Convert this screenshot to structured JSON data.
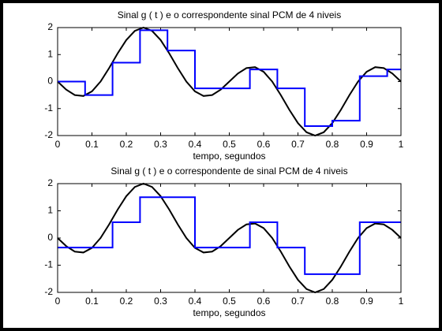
{
  "chart_data": [
    {
      "type": "line",
      "title": "Sinal  g ( t ) e o correspondente sinal PCM de 4 niveis",
      "xlabel": "tempo, segundos",
      "xlim": [
        0,
        1
      ],
      "ylim": [
        -2,
        2
      ],
      "xticks": [
        0,
        0.1,
        0.2,
        0.3,
        0.4,
        0.5,
        0.6,
        0.7,
        0.8,
        0.9,
        1
      ],
      "yticks": [
        -2,
        -1,
        0,
        1,
        2
      ],
      "series": [
        {
          "color": "#000000",
          "style": "line",
          "x": [
            0,
            0.025,
            0.05,
            0.075,
            0.1,
            0.125,
            0.15,
            0.175,
            0.2,
            0.225,
            0.25,
            0.275,
            0.3,
            0.325,
            0.35,
            0.375,
            0.4,
            0.425,
            0.45,
            0.475,
            0.5,
            0.525,
            0.55,
            0.575,
            0.6,
            0.625,
            0.65,
            0.675,
            0.7,
            0.725,
            0.75,
            0.775,
            0.8,
            0.825,
            0.85,
            0.875,
            0.9,
            0.925,
            0.95,
            0.975,
            1
          ],
          "values": [
            0,
            -0.298,
            -0.5,
            -0.534,
            -0.363,
            0,
            0.5,
            1.047,
            1.539,
            1.879,
            2,
            1.879,
            1.539,
            1.047,
            0.5,
            0,
            -0.363,
            -0.534,
            -0.5,
            -0.298,
            0,
            0.298,
            0.5,
            0.534,
            0.363,
            0,
            -0.5,
            -1.047,
            -1.539,
            -1.879,
            -2,
            -1.879,
            -1.539,
            -1.047,
            -0.5,
            0,
            0.363,
            0.534,
            0.5,
            0.298,
            0
          ]
        },
        {
          "color": "#0000ff",
          "style": "step",
          "x": [
            0,
            0.08,
            0.16,
            0.24,
            0.32,
            0.4,
            0.48,
            0.56,
            0.64,
            0.72,
            0.8,
            0.88,
            0.96
          ],
          "values": [
            0,
            -0.5,
            0.7,
            1.9,
            1.15,
            -0.25,
            -0.25,
            0.45,
            -0.25,
            -1.65,
            -1.45,
            0.2,
            0.45
          ]
        }
      ]
    },
    {
      "type": "line",
      "title": "Sinal  g ( t ) e o correspondente de sinal PCM de 4 niveis",
      "xlabel": "tempo, segundos",
      "xlim": [
        0,
        1
      ],
      "ylim": [
        -2,
        2
      ],
      "xticks": [
        0,
        0.1,
        0.2,
        0.3,
        0.4,
        0.5,
        0.6,
        0.7,
        0.8,
        0.9,
        1
      ],
      "yticks": [
        -2,
        -1,
        0,
        1,
        2
      ],
      "series": [
        {
          "color": "#000000",
          "style": "line",
          "x": [
            0,
            0.025,
            0.05,
            0.075,
            0.1,
            0.125,
            0.15,
            0.175,
            0.2,
            0.225,
            0.25,
            0.275,
            0.3,
            0.325,
            0.35,
            0.375,
            0.4,
            0.425,
            0.45,
            0.475,
            0.5,
            0.525,
            0.55,
            0.575,
            0.6,
            0.625,
            0.65,
            0.675,
            0.7,
            0.725,
            0.75,
            0.775,
            0.8,
            0.825,
            0.85,
            0.875,
            0.9,
            0.925,
            0.95,
            0.975,
            1
          ],
          "values": [
            0,
            -0.298,
            -0.5,
            -0.534,
            -0.363,
            0,
            0.5,
            1.047,
            1.539,
            1.879,
            2,
            1.879,
            1.539,
            1.047,
            0.5,
            0,
            -0.363,
            -0.534,
            -0.5,
            -0.298,
            0,
            0.298,
            0.5,
            0.534,
            0.363,
            0,
            -0.5,
            -1.047,
            -1.539,
            -1.879,
            -2,
            -1.879,
            -1.539,
            -1.047,
            -0.5,
            0,
            0.363,
            0.534,
            0.5,
            0.298,
            0
          ]
        },
        {
          "color": "#0000ff",
          "style": "step",
          "x": [
            0,
            0.08,
            0.16,
            0.24,
            0.32,
            0.4,
            0.48,
            0.56,
            0.64,
            0.72,
            0.8,
            0.88,
            0.96
          ],
          "values": [
            -0.35,
            -0.35,
            0.58,
            1.5,
            1.5,
            -0.35,
            -0.35,
            0.58,
            -0.35,
            -1.33,
            -1.33,
            0.58,
            0.58
          ]
        }
      ]
    }
  ]
}
